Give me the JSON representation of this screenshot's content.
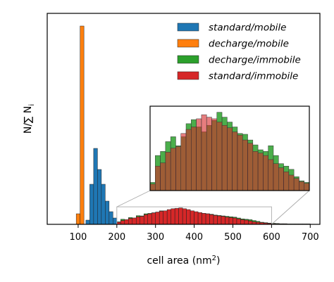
{
  "chart_data": {
    "type": "bar",
    "xlabel": "cell area (nm",
    "xlabel_sup": "2",
    "xlabel_close": ")",
    "ylabel": "N/∑ N",
    "xlim": [
      20,
      725
    ],
    "ylim": [
      0,
      1.0
    ],
    "xticks": [
      100,
      200,
      300,
      400,
      500,
      600,
      700
    ],
    "grid": false,
    "legend_placement": "top-right",
    "colors": {
      "standard_mobile": "#1f77b4",
      "decharge_mobile": "#ff7f0e",
      "decharge_immobile": "#2ca02c",
      "standard_immobile": "#d62728"
    },
    "series": [
      {
        "name": "standard/mobile",
        "color": "#1f77b4",
        "bin_width": 10,
        "bins": [
          [
            120,
            0.02
          ],
          [
            130,
            0.19
          ],
          [
            140,
            0.36
          ],
          [
            150,
            0.26
          ],
          [
            160,
            0.19
          ],
          [
            170,
            0.11
          ],
          [
            180,
            0.06
          ],
          [
            190,
            0.03
          ]
        ]
      },
      {
        "name": "decharge/mobile",
        "color": "#ff7f0e",
        "bin_width": 10,
        "bins": [
          [
            95,
            0.05
          ],
          [
            105,
            0.94
          ]
        ]
      },
      {
        "name": "decharge/immobile",
        "color": "#2ca02c",
        "bin_width": 10,
        "bins": [
          [
            190,
            0.005
          ],
          [
            200,
            0.012
          ],
          [
            210,
            0.024
          ],
          [
            220,
            0.022
          ],
          [
            230,
            0.032
          ],
          [
            240,
            0.03
          ],
          [
            250,
            0.041
          ],
          [
            260,
            0.04
          ],
          [
            270,
            0.05
          ],
          [
            280,
            0.052
          ],
          [
            290,
            0.055
          ],
          [
            300,
            0.058
          ],
          [
            310,
            0.064
          ],
          [
            320,
            0.062
          ],
          [
            330,
            0.066
          ],
          [
            340,
            0.068
          ],
          [
            350,
            0.07
          ],
          [
            360,
            0.072
          ],
          [
            370,
            0.065
          ],
          [
            380,
            0.066
          ],
          [
            390,
            0.06
          ],
          [
            400,
            0.058
          ],
          [
            410,
            0.055
          ],
          [
            420,
            0.052
          ],
          [
            430,
            0.05
          ],
          [
            440,
            0.048
          ],
          [
            450,
            0.044
          ],
          [
            460,
            0.042
          ],
          [
            470,
            0.04
          ],
          [
            480,
            0.038
          ],
          [
            490,
            0.036
          ],
          [
            500,
            0.034
          ],
          [
            510,
            0.03
          ],
          [
            520,
            0.026
          ],
          [
            530,
            0.024
          ],
          [
            540,
            0.022
          ],
          [
            550,
            0.018
          ],
          [
            560,
            0.014
          ],
          [
            570,
            0.01
          ],
          [
            580,
            0.008
          ],
          [
            590,
            0.006
          ],
          [
            600,
            0.005
          ],
          [
            610,
            0.004
          ],
          [
            620,
            0.003
          ],
          [
            630,
            0.003
          ],
          [
            640,
            0.002
          ],
          [
            650,
            0.002
          ],
          [
            660,
            0.002
          ],
          [
            670,
            0.002
          ],
          [
            680,
            0.002
          ],
          [
            690,
            0.002
          ]
        ]
      },
      {
        "name": "standard/immobile",
        "color": "#d62728",
        "bin_width": 10,
        "bins": [
          [
            190,
            0.003
          ],
          [
            200,
            0.01
          ],
          [
            210,
            0.018
          ],
          [
            220,
            0.022
          ],
          [
            230,
            0.028
          ],
          [
            240,
            0.03
          ],
          [
            250,
            0.036
          ],
          [
            260,
            0.038
          ],
          [
            270,
            0.046
          ],
          [
            280,
            0.05
          ],
          [
            290,
            0.054
          ],
          [
            300,
            0.058
          ],
          [
            310,
            0.062
          ],
          [
            320,
            0.064
          ],
          [
            330,
            0.07
          ],
          [
            340,
            0.074
          ],
          [
            350,
            0.076
          ],
          [
            360,
            0.078
          ],
          [
            370,
            0.074
          ],
          [
            380,
            0.07
          ],
          [
            390,
            0.064
          ],
          [
            400,
            0.06
          ],
          [
            410,
            0.056
          ],
          [
            420,
            0.052
          ],
          [
            430,
            0.05
          ],
          [
            440,
            0.046
          ],
          [
            450,
            0.042
          ],
          [
            460,
            0.04
          ],
          [
            470,
            0.038
          ],
          [
            480,
            0.034
          ],
          [
            490,
            0.032
          ],
          [
            500,
            0.03
          ],
          [
            510,
            0.026
          ],
          [
            520,
            0.022
          ],
          [
            530,
            0.02
          ],
          [
            540,
            0.016
          ],
          [
            550,
            0.012
          ],
          [
            560,
            0.01
          ],
          [
            570,
            0.008
          ],
          [
            580,
            0.006
          ],
          [
            590,
            0.004
          ],
          [
            600,
            0.003
          ],
          [
            610,
            0.002
          ],
          [
            620,
            0.002
          ],
          [
            630,
            0.002
          ],
          [
            640,
            0.001
          ],
          [
            650,
            0.001
          ],
          [
            660,
            0.001
          ],
          [
            670,
            0.001
          ],
          [
            680,
            0.001
          ],
          [
            690,
            0.001
          ]
        ]
      }
    ],
    "inset": {
      "zoom_x_range": [
        200,
        600
      ],
      "zoom_y_max": 0.083,
      "series": [
        {
          "name": "decharge/immobile",
          "color": "#2ca02c",
          "alpha": 0.85,
          "bins": [
            [
              200,
              0.1
            ],
            [
              210,
              0.43
            ],
            [
              220,
              0.48
            ],
            [
              230,
              0.6
            ],
            [
              240,
              0.66
            ],
            [
              250,
              0.55
            ],
            [
              260,
              0.66
            ],
            [
              270,
              0.82
            ],
            [
              280,
              0.87
            ],
            [
              290,
              0.78
            ],
            [
              300,
              0.72
            ],
            [
              310,
              0.8
            ],
            [
              320,
              0.86
            ],
            [
              330,
              0.96
            ],
            [
              340,
              0.9
            ],
            [
              350,
              0.84
            ],
            [
              360,
              0.78
            ],
            [
              370,
              0.7
            ],
            [
              380,
              0.69
            ],
            [
              390,
              0.62
            ],
            [
              400,
              0.56
            ],
            [
              410,
              0.5
            ],
            [
              420,
              0.48
            ],
            [
              430,
              0.55
            ],
            [
              440,
              0.43
            ],
            [
              450,
              0.33
            ],
            [
              460,
              0.3
            ],
            [
              470,
              0.26
            ],
            [
              480,
              0.17
            ],
            [
              490,
              0.12
            ],
            [
              500,
              0.1
            ]
          ]
        },
        {
          "name": "standard/immobile",
          "color": "#d62728",
          "alpha": 0.6,
          "bins": [
            [
              200,
              0.08
            ],
            [
              210,
              0.3
            ],
            [
              220,
              0.34
            ],
            [
              230,
              0.47
            ],
            [
              240,
              0.52
            ],
            [
              250,
              0.54
            ],
            [
              260,
              0.7
            ],
            [
              270,
              0.75
            ],
            [
              280,
              0.78
            ],
            [
              290,
              0.88
            ],
            [
              300,
              0.93
            ],
            [
              310,
              0.9
            ],
            [
              320,
              0.88
            ],
            [
              330,
              0.84
            ],
            [
              340,
              0.8
            ],
            [
              350,
              0.77
            ],
            [
              360,
              0.72
            ],
            [
              370,
              0.68
            ],
            [
              380,
              0.62
            ],
            [
              390,
              0.58
            ],
            [
              400,
              0.48
            ],
            [
              410,
              0.46
            ],
            [
              420,
              0.43
            ],
            [
              430,
              0.38
            ],
            [
              440,
              0.33
            ],
            [
              450,
              0.28
            ],
            [
              460,
              0.23
            ],
            [
              470,
              0.19
            ],
            [
              480,
              0.15
            ],
            [
              490,
              0.11
            ],
            [
              500,
              0.09
            ]
          ]
        }
      ]
    }
  }
}
